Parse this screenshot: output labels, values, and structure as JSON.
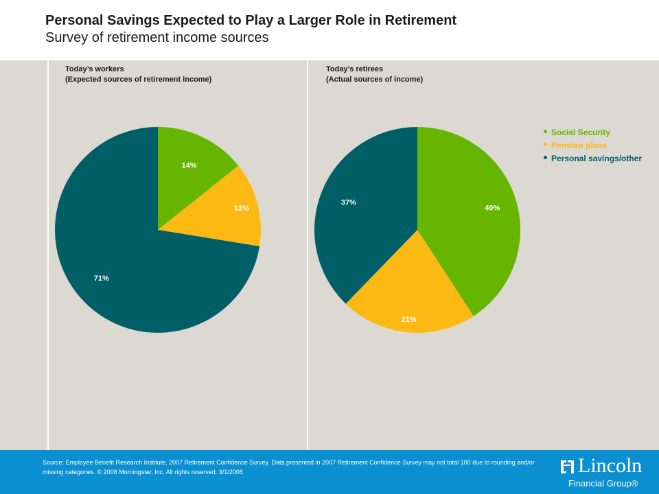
{
  "title": "Personal Savings Expected to Play a Larger Role in Retirement",
  "subtitle": "Survey of retirement income sources",
  "colors": {
    "social_security": "#66b500",
    "pension_plans": "#fdb913",
    "personal_savings": "#005f66",
    "footer": "#0a8fd0",
    "background": "#dcd8d2"
  },
  "chart_data": [
    {
      "type": "pie",
      "title_line1": "Today’s workers",
      "title_line2": "(Expected sources of retirement income)",
      "slices": [
        {
          "name": "Social Security",
          "value": 14,
          "label": "14%"
        },
        {
          "name": "Pension plans",
          "value": 13,
          "label": "13%"
        },
        {
          "name": "Personal savings/other",
          "value": 71,
          "label": "71%"
        }
      ]
    },
    {
      "type": "pie",
      "title_line1": "Today’s retirees",
      "title_line2": "(Actual sources of income)",
      "slices": [
        {
          "name": "Social Security",
          "value": 40,
          "label": "40%"
        },
        {
          "name": "Pension plans",
          "value": 21,
          "label": "21%"
        },
        {
          "name": "Personal savings/other",
          "value": 37,
          "label": "37%"
        }
      ]
    }
  ],
  "legend": [
    {
      "label": "Social Security",
      "color": "#66b500"
    },
    {
      "label": "Pension plans",
      "color": "#fdb913"
    },
    {
      "label": "Personal savings/other",
      "color": "#005f66"
    }
  ],
  "footer": {
    "source": "Source: Employee Benefit Research Institute, 2007 Retirement Confidence Survey. Data presented in 2007 Retirement Confidence Survey may not total 100 due to rounding and/or missing categories. © 2008 Morningstar, Inc. All rights reserved. 3/1/2008",
    "logo_name": "Lincoln",
    "logo_sub": "Financial Group®"
  }
}
